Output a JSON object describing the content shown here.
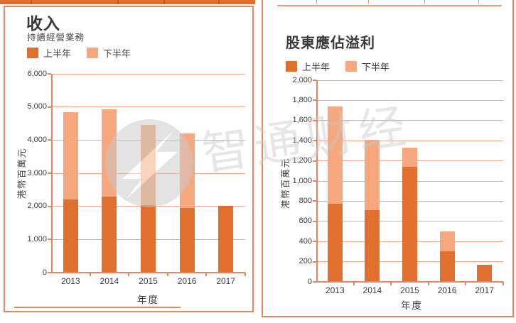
{
  "colors": {
    "first_half": "#e1702f",
    "second_half": "#f6a77d",
    "grid": "#f2a486",
    "axis": "#e8845c",
    "panel_border": "#e8885f",
    "top_bar": "#e06e2e",
    "text": "#3c3c3c",
    "watermark": "#c9c9c9"
  },
  "watermark": {
    "text": "智通财经",
    "logo": "zhitong-circle-logo"
  },
  "left_panel": {
    "title": "收入",
    "subtitle": "持續經營業務",
    "legend": [
      {
        "label": "上半年"
      },
      {
        "label": "下半年"
      }
    ],
    "xlabel": "年度",
    "ylabel": "港幣百萬元"
  },
  "right_panel": {
    "title": "股東應佔溢利",
    "legend": [
      {
        "label": "上半年"
      },
      {
        "label": "下半年"
      }
    ],
    "xlabel": "年度",
    "ylabel": "港幣百萬元"
  },
  "chart_data": [
    {
      "type": "bar",
      "stacked": true,
      "title": "收入",
      "subtitle": "持續經營業務",
      "categories": [
        "2013",
        "2014",
        "2015",
        "2016",
        "2017"
      ],
      "series": [
        {
          "name": "上半年",
          "values": [
            2200,
            2300,
            2030,
            1950,
            2020
          ]
        },
        {
          "name": "下半年",
          "values": [
            2650,
            2620,
            2430,
            2250,
            0
          ]
        }
      ],
      "totals": [
        4850,
        4920,
        4460,
        4200,
        2020
      ],
      "xlabel": "年度",
      "ylabel": "港幣百萬元",
      "ylim": [
        0,
        6000
      ],
      "ytick_step": 1000,
      "yticklabels": [
        "0",
        "1,000",
        "2,000",
        "3,000",
        "4,000",
        "5,000",
        "6,000"
      ],
      "grid": true,
      "legend_position": "top-left"
    },
    {
      "type": "bar",
      "stacked": true,
      "title": "股東應佔溢利",
      "categories": [
        "2013",
        "2014",
        "2015",
        "2016",
        "2017"
      ],
      "series": [
        {
          "name": "上半年",
          "values": [
            775,
            710,
            1140,
            300,
            170
          ]
        },
        {
          "name": "下半年",
          "values": [
            965,
            700,
            190,
            200,
            0
          ]
        }
      ],
      "totals": [
        1740,
        1410,
        1330,
        500,
        170
      ],
      "xlabel": "年度",
      "ylabel": "港幣百萬元",
      "ylim": [
        0,
        2000
      ],
      "ytick_step": 200,
      "yticklabels": [
        "0",
        "200",
        "400",
        "600",
        "800",
        "1,000",
        "1,200",
        "1,400",
        "1,600",
        "1,800",
        "2,000"
      ],
      "grid": true,
      "legend_position": "top-left"
    }
  ]
}
